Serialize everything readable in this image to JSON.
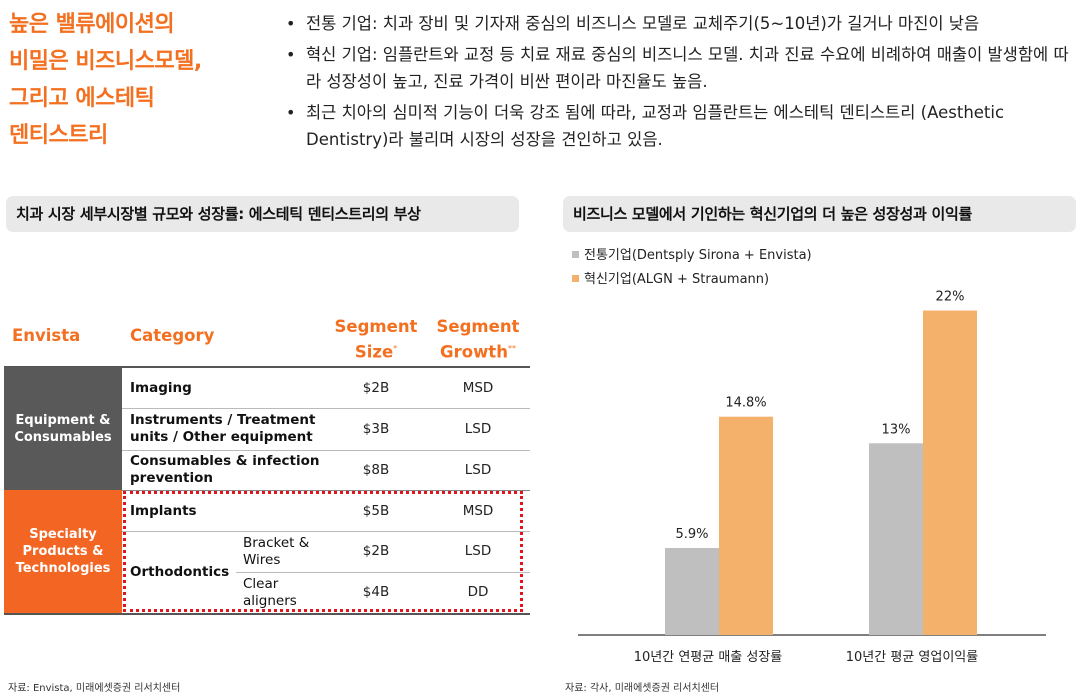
{
  "headline": {
    "lines": [
      "높은 밸류에이션의",
      "비밀은 비즈니스모델,",
      "그리고 에스테틱",
      "덴티스트리"
    ]
  },
  "bullets": [
    "전통 기업: 치과 장비 및 기자재 중심의 비즈니스 모델로 교체주기(5~10년)가 길거나 마진이 낮음",
    "혁신 기업: 임플란트와 교정 등 치료 재료 중심의 비즈니스 모델. 치과 진료 수요에 비례하여 매출이 발생함에 따라 성장성이 높고, 진료 가격이 비싼 편이라 마진율도 높음.",
    "최근 치아의 심미적 기능이 더욱 강조 됨에 따라, 교정과 임플란트는 에스테틱 덴티스트리 (Aesthetic Dentistry)라 불리며 시장의 성장을 견인하고 있음."
  ],
  "left_panel": {
    "title": "치과 시장 세부시장별 규모와 성장률: 에스테틱 덴티스트리의 부상",
    "headers": {
      "envista": "Envista",
      "category": "Category",
      "size": "Segment Size",
      "size_mark": "*",
      "growth": "Segment Growth",
      "growth_mark": "**"
    },
    "groups": [
      {
        "label": "Equipment & Consumables"
      },
      {
        "label": "Specialty Products & Technologies"
      }
    ],
    "rows": [
      {
        "category": "Imaging",
        "sub": "",
        "size": "$2B",
        "growth": "MSD"
      },
      {
        "category": "Instruments / Treatment units / Other equipment",
        "sub": "",
        "size": "$3B",
        "growth": "LSD"
      },
      {
        "category": "Consumables & infection prevention",
        "sub": "",
        "size": "$8B",
        "growth": "LSD"
      },
      {
        "category": "Implants",
        "sub": "",
        "size": "$5B",
        "growth": "MSD"
      },
      {
        "category": "Orthodontics",
        "sub": "Bracket & Wires",
        "size": "$2B",
        "growth": "LSD"
      },
      {
        "category": "",
        "sub": "Clear aligners",
        "size": "$4B",
        "growth": "DD"
      }
    ],
    "source": "자료: Envista, 미래에셋증권 리서치센터"
  },
  "right_panel": {
    "title": "비즈니스 모델에서 기인하는 혁신기업의 더 높은 성장성과 이익률",
    "source": "자료: 각사, 미래에셋증권 리서치센터"
  },
  "chart_data": {
    "type": "bar",
    "categories": [
      "10년간 연평균 매출 성장률",
      "10년간 평균 영업이익률"
    ],
    "series": [
      {
        "name": "전통기업(Dentsply Sirona + Envista)",
        "values": [
          5.9,
          13
        ],
        "labels": [
          "5.9%",
          "13%"
        ],
        "color": "#bfbfbf"
      },
      {
        "name": "혁신기업(ALGN + Straumann)",
        "values": [
          14.8,
          22
        ],
        "labels": [
          "14.8%",
          "22%"
        ],
        "color": "#f4b16b"
      }
    ],
    "ylim": [
      0,
      25
    ],
    "grid": false,
    "legend_position": "top-left"
  },
  "colors": {
    "accent": "#f37021",
    "equipment_block": "#595959",
    "specialty_block": "#f26522",
    "highlight_border": "#e3141b",
    "header_bg": "#e9e9e9"
  }
}
